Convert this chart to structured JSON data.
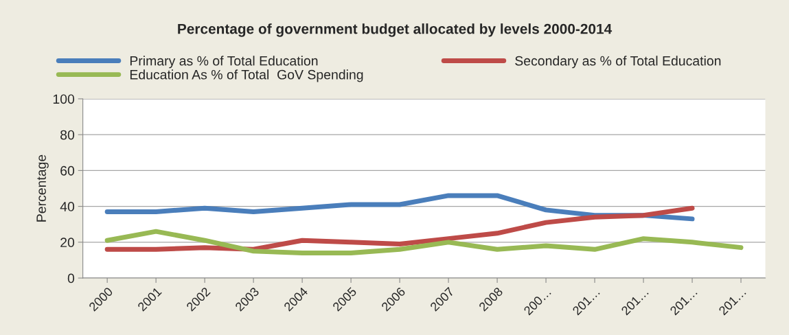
{
  "chart_data": {
    "type": "line",
    "title": "Percentage of government budget allocated by levels 2000-2014",
    "ylabel": "Percentage",
    "categories": [
      "2000",
      "2001",
      "2002",
      "2003",
      "2004",
      "2005",
      "2006",
      "2007",
      "2008",
      "200…",
      "201…",
      "201…",
      "201…",
      "201…"
    ],
    "series": [
      {
        "name": "Primary as % of Total Education",
        "color": "#4a7ebb",
        "values": [
          37,
          37,
          39,
          37,
          39,
          41,
          41,
          46,
          46,
          38,
          35,
          35,
          33,
          null
        ]
      },
      {
        "name": "Secondary as % of Total Education",
        "color": "#be4b48",
        "values": [
          16,
          16,
          17,
          16,
          21,
          20,
          19,
          22,
          25,
          31,
          34,
          35,
          39,
          null
        ]
      },
      {
        "name": "Education As % of Total  GoV Spending",
        "color": "#98b954",
        "values": [
          21,
          26,
          21,
          15,
          14,
          14,
          16,
          20,
          16,
          18,
          16,
          22,
          20,
          17
        ]
      }
    ],
    "ylim": [
      0,
      100
    ],
    "yticks": [
      0,
      20,
      40,
      60,
      80,
      100
    ],
    "grid": "y",
    "legend": "top",
    "marker": "none",
    "line_style": "solid"
  }
}
